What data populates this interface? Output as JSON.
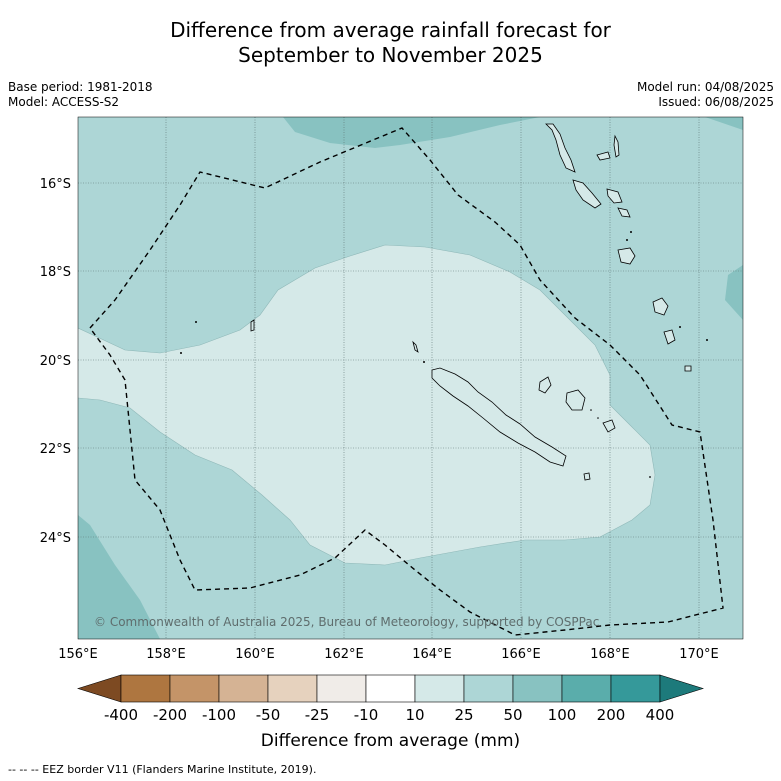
{
  "title_line1": "Difference from average rainfall forecast for",
  "title_line2": "September to November 2025",
  "base_period": "Base period: 1981-2018",
  "model": "Model: ACCESS-S2",
  "model_run": "Model run: 04/08/2025",
  "issued": "Issued: 06/08/2025",
  "copyright": "© Commonwealth of Australia 2025, Bureau of Meteorology, supported by COSPPac",
  "lon_labels": [
    "156°E",
    "158°E",
    "160°E",
    "162°E",
    "164°E",
    "166°E",
    "168°E",
    "170°E"
  ],
  "lat_labels": [
    "16°S",
    "18°S",
    "20°S",
    "22°S",
    "24°S"
  ],
  "colorbar": {
    "title": "Difference from average (mm)",
    "ticks": [
      "-400",
      "-200",
      "-100",
      "-50",
      "-25",
      "-10",
      "10",
      "25",
      "50",
      "100",
      "200",
      "400"
    ],
    "colors": [
      "#7d4a22",
      "#ae7640",
      "#c49468",
      "#d5b394",
      "#e6d2be",
      "#f0ece8",
      "#ffffff",
      "#d5e9e8",
      "#add6d6",
      "#88c2c1",
      "#5aadab",
      "#35999a",
      "#1d7a7b"
    ]
  },
  "footnote": "-- -- -- EEZ border V11 (Flanders Marine Institute, 2019)."
}
